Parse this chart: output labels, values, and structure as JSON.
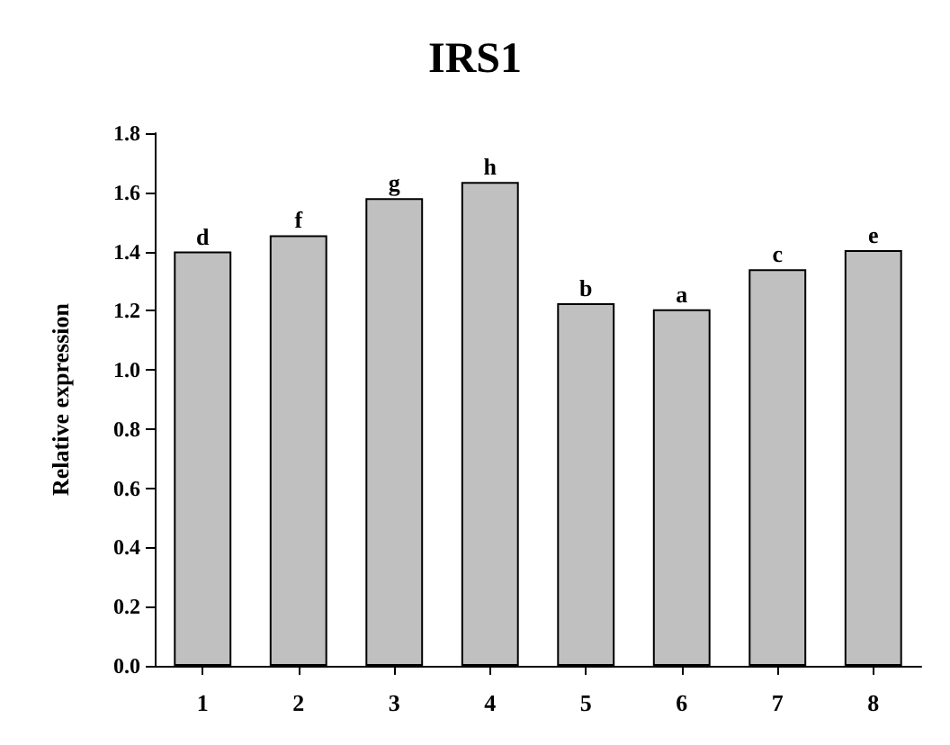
{
  "chart_data": {
    "type": "bar",
    "title": "IRS1",
    "ylabel": "Relative expression",
    "categories": [
      "1",
      "2",
      "3",
      "4",
      "5",
      "6",
      "7",
      "8"
    ],
    "values": [
      1.4,
      1.455,
      1.58,
      1.635,
      1.225,
      1.205,
      1.34,
      1.405
    ],
    "value_labels": [
      "d",
      "f",
      "g",
      "h",
      "b",
      "a",
      "c",
      "e"
    ],
    "color": "#c0c0c0",
    "ylim": [
      0,
      1.8
    ],
    "yticks": [
      {
        "value": 0,
        "label": "0.0"
      },
      {
        "value": 0.2,
        "label": "0.2"
      },
      {
        "value": 0.4,
        "label": "0.4"
      },
      {
        "value": 0.6,
        "label": "0.6"
      },
      {
        "value": 0.8,
        "label": "0.8"
      },
      {
        "value": 1.0,
        "label": "1.0"
      },
      {
        "value": 1.2,
        "label": "1.2"
      },
      {
        "value": 1.4,
        "label": "1.4"
      },
      {
        "value": 1.6,
        "label": "1.6"
      },
      {
        "value": 1.8,
        "label": "1.8"
      }
    ],
    "grid": false
  }
}
